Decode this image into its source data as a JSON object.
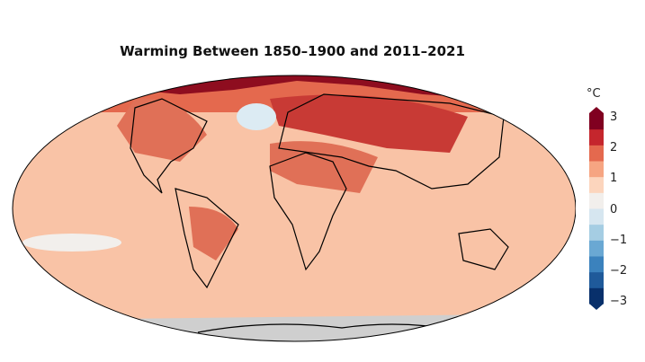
{
  "title": "Warming Between 1850–1900 and 2011–2021",
  "colorbar": {
    "unit": "°C",
    "ticks": [
      "3",
      "2",
      "1",
      "0",
      "−1",
      "−2",
      "−3"
    ],
    "min": -3,
    "max": 3,
    "colors": [
      "#08306b",
      "#1f5a9a",
      "#3b82bd",
      "#6aa8d3",
      "#a5cde3",
      "#d6e6f0",
      "#f2efec",
      "#fcd5bd",
      "#f6a582",
      "#e4694e",
      "#c5262d",
      "#800020"
    ]
  },
  "map_colors": {
    "ocean_base": "#f9c3a6",
    "warm": "#f09a78",
    "hot": "#e07057",
    "hotter": "#c83a35",
    "hottest": "#8e0d1f",
    "cool": "#dcebf3",
    "antarctica": "#cfcfcf",
    "coast": "#000000"
  }
}
